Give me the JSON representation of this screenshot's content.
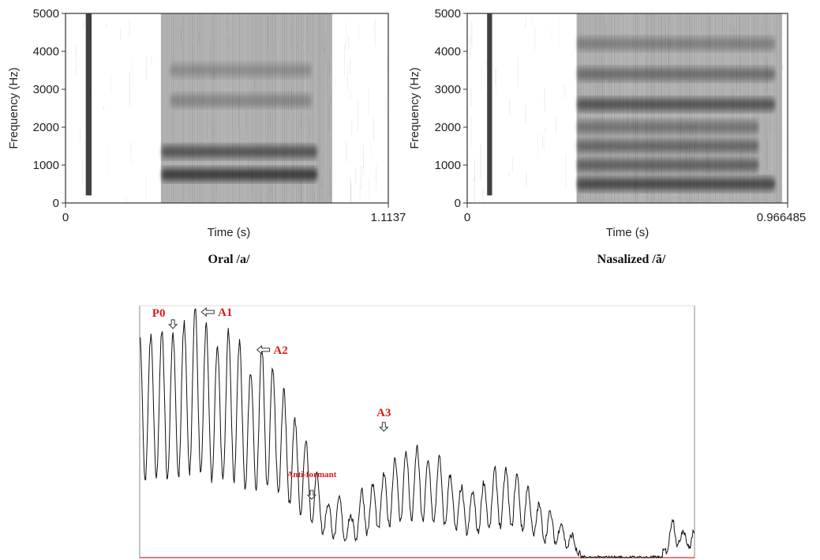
{
  "chart_data": [
    {
      "type": "heatmap",
      "caption": "Oral /a/",
      "xlabel": "Time (s)",
      "ylabel": "Frequency (Hz)",
      "xlim": [
        0,
        1.1137
      ],
      "ylim": [
        0,
        5000
      ],
      "x_tick_labels": [
        "0",
        "1.1137"
      ],
      "y_ticks": [
        0,
        1000,
        2000,
        3000,
        4000,
        5000
      ],
      "colormap": "grayscale",
      "segments": [
        {
          "name": "burst",
          "t": [
            0.07,
            0.09
          ],
          "f": [
            200,
            5000
          ]
        },
        {
          "name": "vowel",
          "t": [
            0.33,
            0.92
          ],
          "f": [
            0,
            5000
          ]
        }
      ],
      "formant_bands": [
        {
          "f": 750,
          "t": [
            0.33,
            0.87
          ],
          "intensity": 0.95
        },
        {
          "f": 1350,
          "t": [
            0.33,
            0.87
          ],
          "intensity": 0.75
        },
        {
          "f": 2700,
          "t": [
            0.36,
            0.85
          ],
          "intensity": 0.35
        },
        {
          "f": 3500,
          "t": [
            0.36,
            0.85
          ],
          "intensity": 0.3
        }
      ]
    },
    {
      "type": "heatmap",
      "caption": "Nasalized /ã/",
      "xlabel": "Time (s)",
      "ylabel": "Frequency (Hz)",
      "xlim": [
        0,
        0.966485
      ],
      "ylim": [
        0,
        5000
      ],
      "x_tick_labels": [
        "0",
        "0.966485"
      ],
      "y_ticks": [
        0,
        1000,
        2000,
        3000,
        4000,
        5000
      ],
      "colormap": "grayscale",
      "segments": [
        {
          "name": "burst",
          "t": [
            0.06,
            0.075
          ],
          "f": [
            200,
            5000
          ]
        },
        {
          "name": "vowel",
          "t": [
            0.33,
            0.95
          ],
          "f": [
            0,
            5000
          ]
        }
      ],
      "formant_bands": [
        {
          "f": 500,
          "t": [
            0.33,
            0.93
          ],
          "intensity": 0.85
        },
        {
          "f": 1000,
          "t": [
            0.33,
            0.88
          ],
          "intensity": 0.65
        },
        {
          "f": 1500,
          "t": [
            0.33,
            0.88
          ],
          "intensity": 0.6
        },
        {
          "f": 2000,
          "t": [
            0.33,
            0.88
          ],
          "intensity": 0.5
        },
        {
          "f": 2600,
          "t": [
            0.33,
            0.93
          ],
          "intensity": 0.75
        },
        {
          "f": 3400,
          "t": [
            0.33,
            0.93
          ],
          "intensity": 0.55
        },
        {
          "f": 4200,
          "t": [
            0.33,
            0.93
          ],
          "intensity": 0.4
        }
      ]
    },
    {
      "type": "line",
      "description_of_axes": "",
      "xlim": [
        0,
        100
      ],
      "ylim": [
        0,
        100
      ],
      "peaks_x": [
        2,
        4,
        6,
        8,
        10,
        12,
        14,
        16,
        18,
        20,
        22,
        24,
        26,
        28,
        30,
        32,
        34,
        36,
        38,
        40,
        42,
        44,
        46,
        48,
        50,
        52,
        54,
        56,
        58,
        60,
        62,
        64,
        66,
        68,
        70,
        72,
        74,
        76,
        78,
        80,
        82,
        84,
        86,
        88,
        90,
        92,
        94,
        96,
        98
      ],
      "peaks_y": [
        88,
        90,
        89,
        93,
        100,
        92,
        84,
        90,
        86,
        73,
        84,
        75,
        66,
        55,
        47,
        33,
        21,
        24,
        16,
        27,
        29,
        33,
        40,
        42,
        44,
        38,
        40,
        33,
        28,
        26,
        30,
        35,
        35,
        33,
        28,
        21,
        18,
        14,
        9,
        0,
        0,
        0,
        0,
        0,
        0,
        0,
        0,
        16,
        11
      ],
      "annotations": [
        {
          "label": "P0",
          "x": 4,
          "y": 90,
          "arrow": "down"
        },
        {
          "label": "A1",
          "x": 10,
          "y": 100,
          "arrow": "left"
        },
        {
          "label": "A2",
          "x": 20,
          "y": 85,
          "arrow": "left"
        },
        {
          "label": "A3",
          "x": 44,
          "y": 48,
          "arrow": "down"
        },
        {
          "label": "Anti-formant",
          "x": 31,
          "y": 21,
          "arrow": "down"
        }
      ],
      "baseline_color": "#e05050",
      "annotation_color": "#e01a1a"
    }
  ]
}
